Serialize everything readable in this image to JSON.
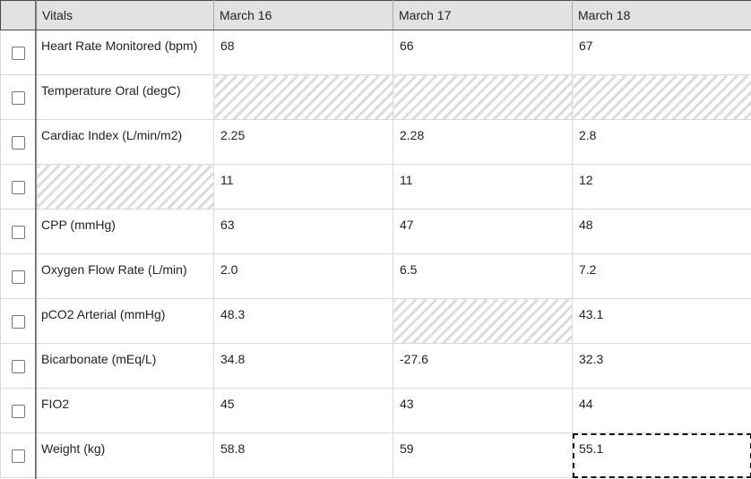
{
  "header": {
    "vitals_label": "Vitals",
    "days": [
      "March 16",
      "March 17",
      "March 18"
    ]
  },
  "rows": [
    {
      "label": "Heart Rate Monitored (bpm)",
      "values": [
        "68",
        "66",
        "67"
      ]
    },
    {
      "label": "Temperature Oral (degC)",
      "values": [
        "",
        "",
        ""
      ]
    },
    {
      "label": "Cardiac Index (L/min/m2)",
      "values": [
        "2.25",
        "2.28",
        "2.8"
      ]
    },
    {
      "label": "",
      "values": [
        "11",
        "11",
        "12"
      ]
    },
    {
      "label": "CPP (mmHg)",
      "values": [
        "63",
        "47",
        "48"
      ]
    },
    {
      "label": "Oxygen Flow Rate (L/min)",
      "values": [
        "2.0",
        "6.5",
        "7.2"
      ]
    },
    {
      "label": "pCO2 Arterial (mmHg)",
      "values": [
        "48.3",
        "",
        "43.1"
      ]
    },
    {
      "label": "Bicarbonate (mEq/L)",
      "values": [
        "34.8",
        "-27.6",
        "32.3"
      ]
    },
    {
      "label": "FIO2",
      "values": [
        "45",
        "43",
        "44"
      ]
    },
    {
      "label": "Weight (kg)",
      "values": [
        "58.8",
        "59",
        "55.1"
      ]
    }
  ],
  "missing_pattern_color": "#dcdcdc",
  "header_background": "#e2e2e4"
}
